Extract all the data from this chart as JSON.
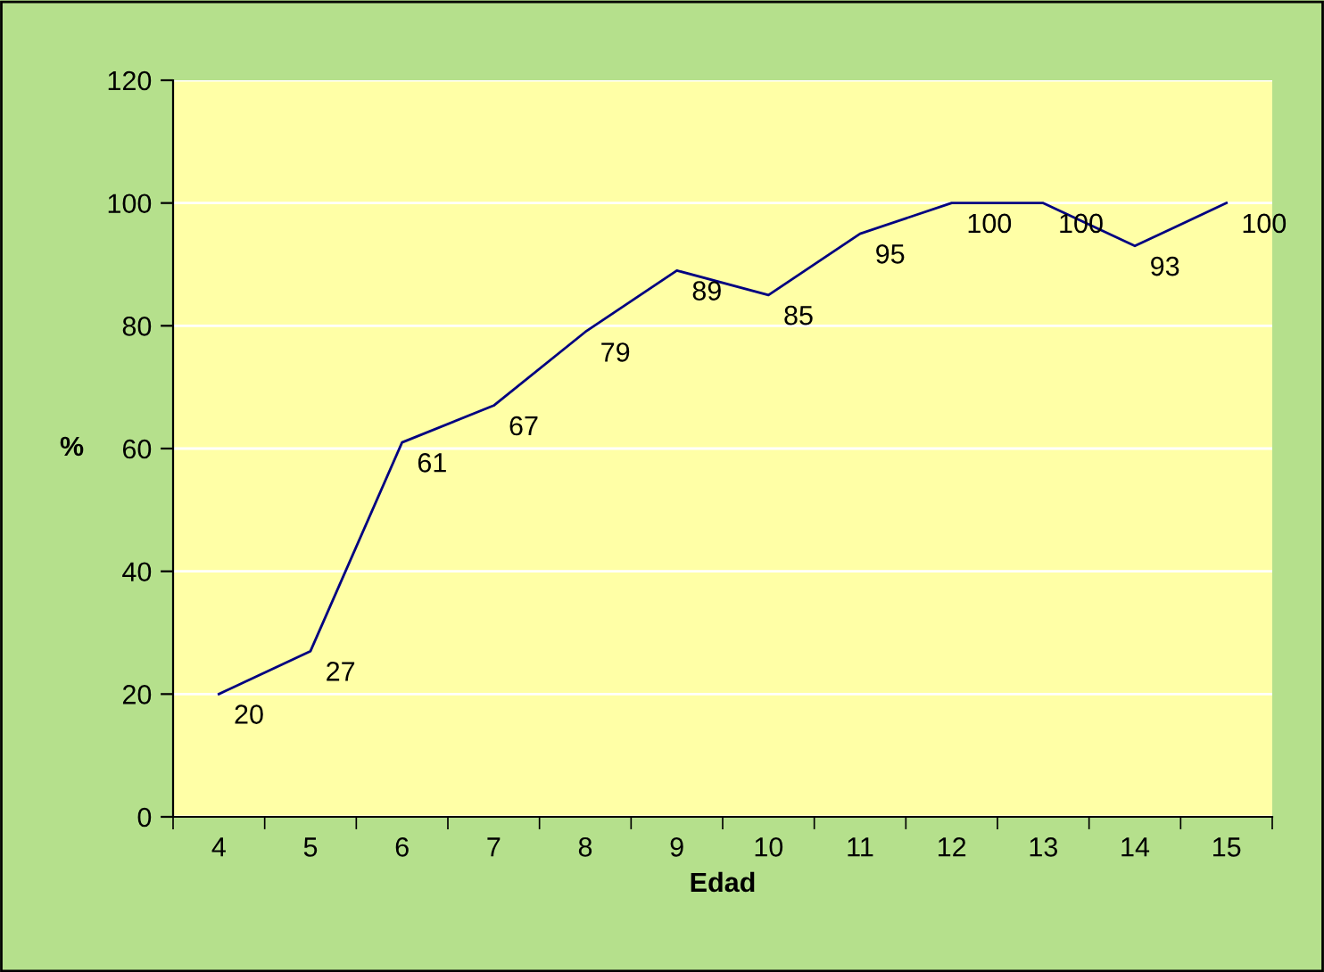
{
  "chart_data": {
    "type": "line",
    "xlabel": "Edad",
    "ylabel": "%",
    "categories": [
      "4",
      "5",
      "6",
      "7",
      "8",
      "9",
      "10",
      "11",
      "12",
      "13",
      "14",
      "15"
    ],
    "values": [
      20,
      27,
      61,
      67,
      79,
      89,
      85,
      95,
      100,
      100,
      93,
      100
    ],
    "color": "#000080",
    "ylim": [
      0,
      120
    ],
    "yticks": [
      0,
      20,
      40,
      60,
      80,
      100,
      120
    ],
    "grid": "y",
    "data_labels": true
  }
}
